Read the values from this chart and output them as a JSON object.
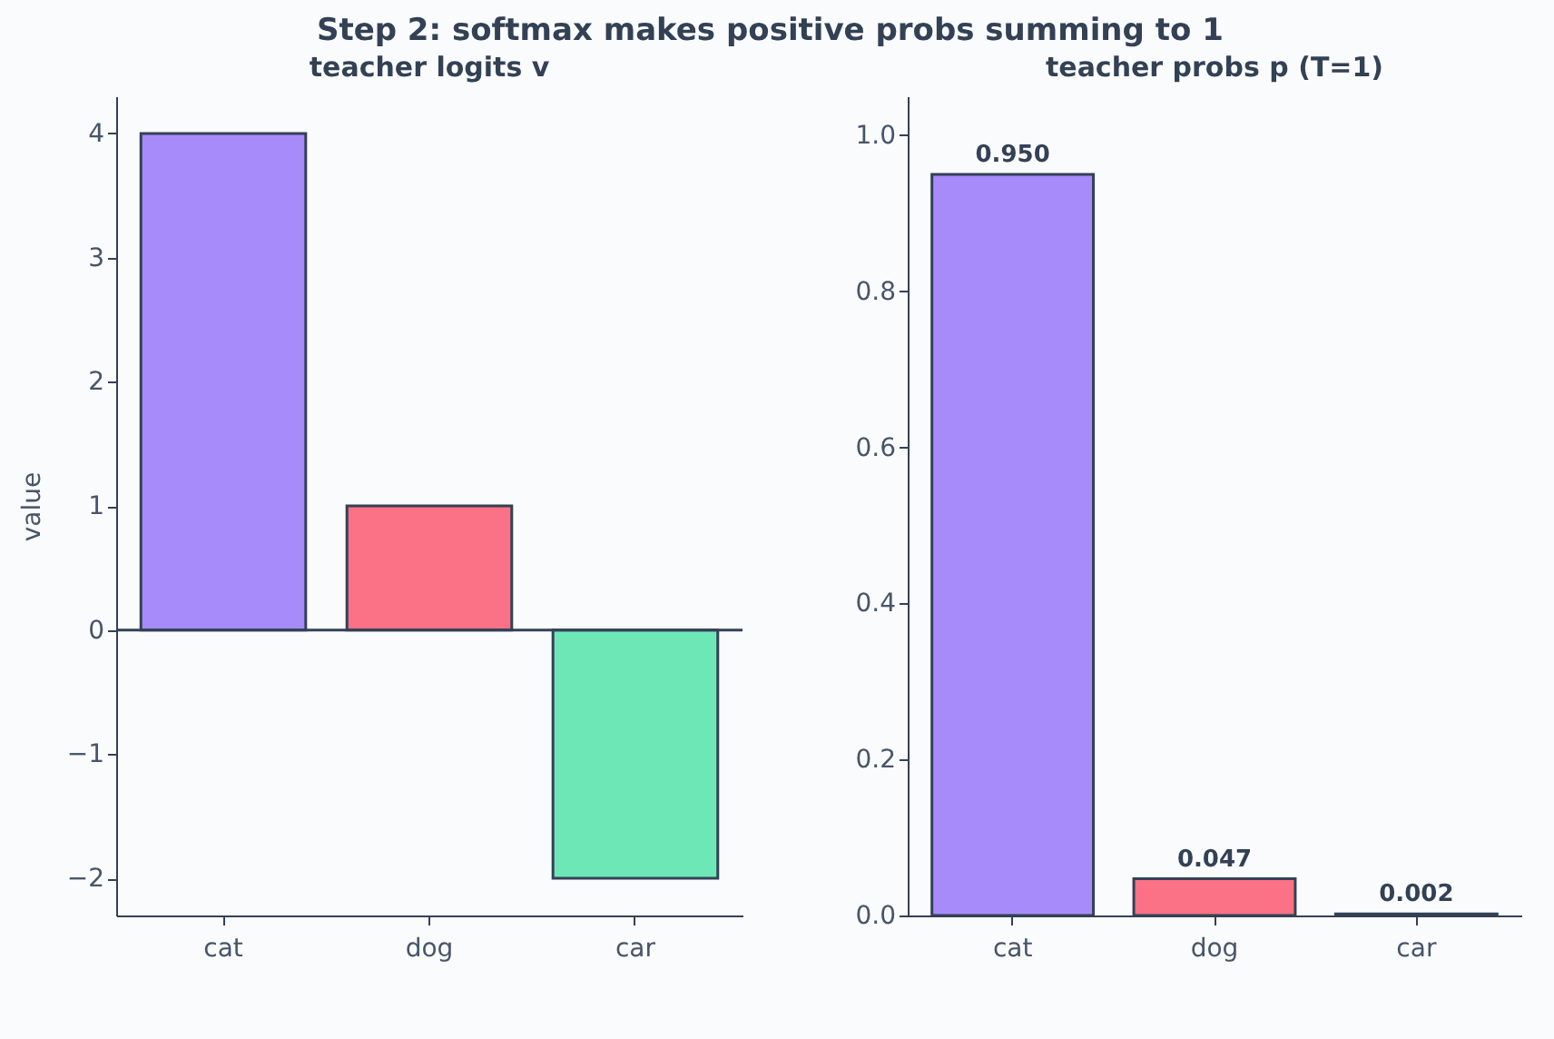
{
  "chart_data": [
    {
      "type": "bar",
      "title": "Step 2: softmax makes positive probs summing to 1",
      "subtitle": "teacher logits v",
      "ylabel": "value",
      "categories": [
        "cat",
        "dog",
        "car"
      ],
      "values": [
        4,
        1,
        -2
      ],
      "colors": [
        "#a78bfa",
        "#fb7185",
        "#6ee7b7"
      ],
      "ylim": [
        -2.3,
        4.3
      ],
      "yticks": [
        -2,
        -1,
        0,
        1,
        2,
        3,
        4
      ],
      "ref_lines": [
        {
          "axis": "y",
          "value": 0,
          "color": "#334155"
        }
      ],
      "grid": false
    },
    {
      "type": "bar",
      "subtitle": "teacher probs p (T=1)",
      "categories": [
        "cat",
        "dog",
        "car"
      ],
      "values": [
        0.95,
        0.047,
        0.002
      ],
      "value_labels": [
        "0.950",
        "0.047",
        "0.002"
      ],
      "colors": [
        "#a78bfa",
        "#fb7185",
        "#6ee7b7"
      ],
      "ylim": [
        0,
        1.05
      ],
      "yticks": [
        {
          "value": 0,
          "label": "0.0"
        },
        0.2,
        0.4,
        0.6,
        0.8,
        {
          "value": 1,
          "label": "1.0"
        }
      ],
      "grid": false
    }
  ]
}
